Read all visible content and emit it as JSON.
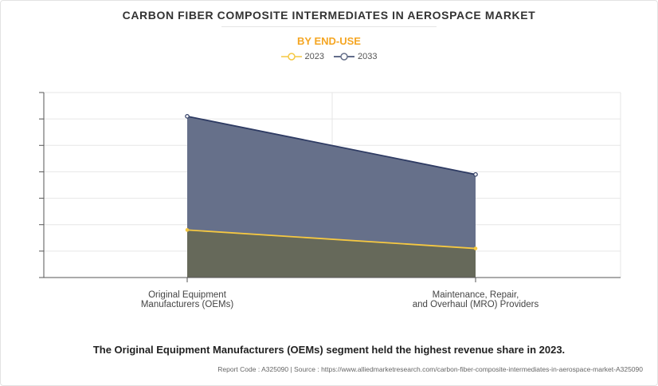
{
  "title": "CARBON FIBER COMPOSITE INTERMEDIATES IN AEROSPACE MARKET",
  "subtitle": "BY END-USE",
  "summary": "The Original Equipment Manufacturers (OEMs) segment held the highest revenue share in 2023.",
  "source": "Report Code : A325090  |  Source : https://www.alliedmarketresearch.com/carbon-fiber-composite-intermediates-in-aerospace-market-A325090",
  "colors": {
    "series_2023": "#f5c842",
    "series_2033": "#2e3b63",
    "fill_2033": "#66708a",
    "fill_2023": "#66695a"
  },
  "chart_data": {
    "type": "area",
    "categories": [
      [
        "Original Equipment",
        "Manufacturers (OEMs)"
      ],
      [
        "Maintenance, Repair,",
        "and Overhaul (MRO) Providers"
      ]
    ],
    "series": [
      {
        "name": "2023",
        "values": [
          1.8,
          1.1
        ]
      },
      {
        "name": "2033",
        "values": [
          6.1,
          3.9
        ]
      }
    ],
    "ylim": [
      0,
      7
    ],
    "y_tick_labels": "none",
    "grid": true,
    "legend_position": "top-center"
  }
}
